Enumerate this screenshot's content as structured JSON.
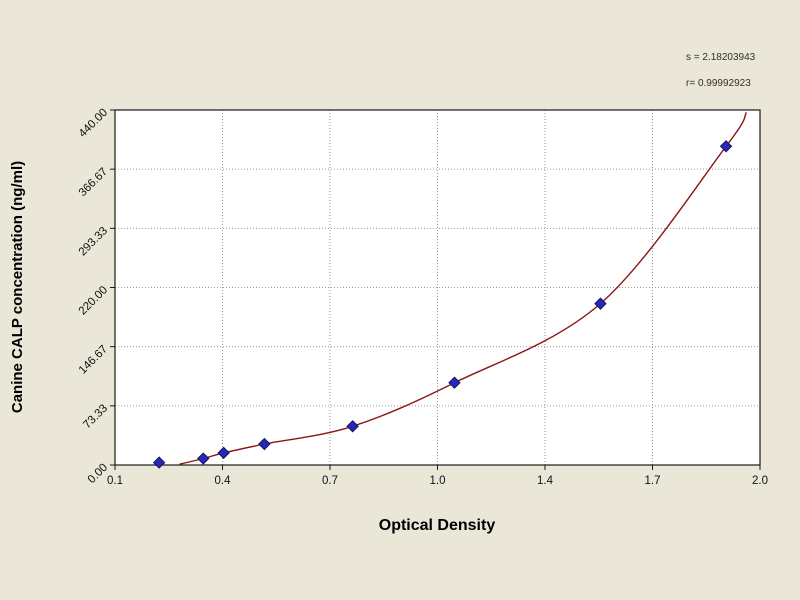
{
  "chart_data": {
    "type": "scatter",
    "title": "",
    "xlabel": "Optical Density",
    "ylabel": "Canine CALP concentration (ng/ml)",
    "xlim": [
      0.1,
      2.0
    ],
    "ylim": [
      0,
      440
    ],
    "x_tick_labels": [
      "0.1",
      "0.4",
      "0.7",
      "1.0",
      "1.4",
      "1.7",
      "2.0"
    ],
    "y_tick_labels": [
      "0.00",
      "73.33",
      "146.67",
      "220.00",
      "293.33",
      "366.67",
      "440.00"
    ],
    "grid": true,
    "legend": "none",
    "points": [
      {
        "x": 0.23,
        "y": 3
      },
      {
        "x": 0.36,
        "y": 8
      },
      {
        "x": 0.42,
        "y": 15
      },
      {
        "x": 0.54,
        "y": 26
      },
      {
        "x": 0.8,
        "y": 48
      },
      {
        "x": 1.1,
        "y": 102
      },
      {
        "x": 1.53,
        "y": 200
      },
      {
        "x": 1.9,
        "y": 395
      }
    ],
    "fit_curve": {
      "start": {
        "x": 0.29,
        "y": 1
      },
      "end": {
        "x": 1.96,
        "y": 437
      }
    },
    "annotations": [
      "s = 2.18203943",
      "r= 0.99992923"
    ],
    "colors": {
      "page_bg": "#eae7d8",
      "plot_bg": "#ffffff",
      "grid": "#9a9a9a",
      "curve": "#8b1616",
      "marker": "#2828b8",
      "marker_edge": "#14145e",
      "axis": "#1a1a1a"
    }
  }
}
